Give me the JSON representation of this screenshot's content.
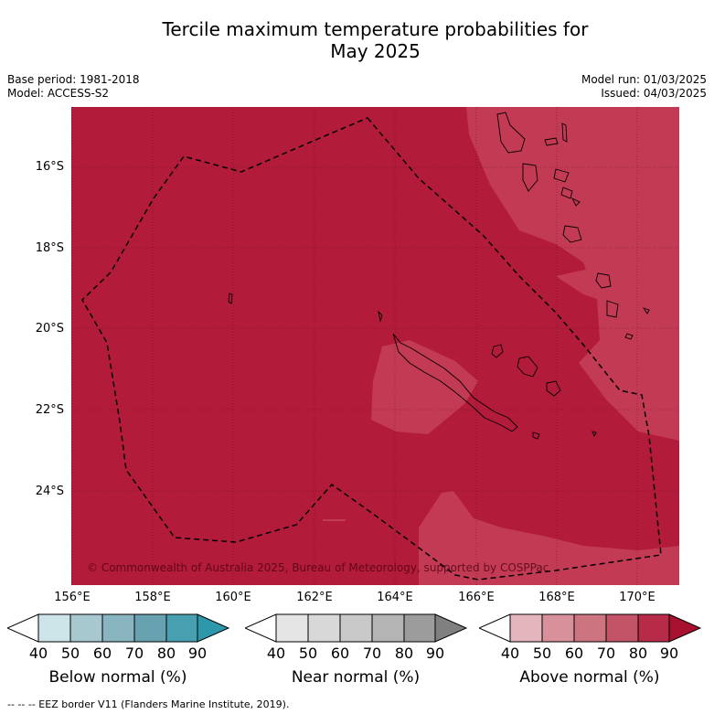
{
  "title_line1": "Tercile maximum temperature probabilities for",
  "title_line2": "May 2025",
  "base_period": "Base period: 1981-2018",
  "model": "Model: ACCESS-S2",
  "model_run": "Model run: 01/03/2025",
  "issued": "Issued: 04/03/2025",
  "copyright": "© Commonwealth of Australia 2025, Bureau of Meteorology, supported by COSPPac",
  "lat_labels": [
    "16°S",
    "18°S",
    "20°S",
    "22°S",
    "24°S"
  ],
  "lon_labels": [
    "156°E",
    "158°E",
    "160°E",
    "162°E",
    "164°E",
    "166°E",
    "168°E",
    "170°E"
  ],
  "colorbars": [
    {
      "title": "Below normal (%)",
      "ticks": [
        "40",
        "50",
        "60",
        "70",
        "80",
        "90"
      ],
      "colors": [
        "#ffffff",
        "#cde4e9",
        "#a7c8cf",
        "#88b5c0",
        "#68a2b1",
        "#479fb0",
        "#2e98ab"
      ]
    },
    {
      "title": "Near normal (%)",
      "ticks": [
        "40",
        "50",
        "60",
        "70",
        "80",
        "90"
      ],
      "colors": [
        "#ffffff",
        "#e5e5e5",
        "#d8d8d8",
        "#c9c9c9",
        "#b4b4b4",
        "#9c9c9c",
        "#808080"
      ]
    },
    {
      "title": "Above normal (%)",
      "ticks": [
        "40",
        "50",
        "60",
        "70",
        "80",
        "90"
      ],
      "colors": [
        "#ffffff",
        "#e3b5bd",
        "#d8919b",
        "#cc7480",
        "#c35468",
        "#b72a48",
        "#a8102f"
      ]
    }
  ],
  "colors": {
    "above_80_90": "#b31b3a",
    "above_70_80": "#c33a55"
  },
  "footnote": "-- -- -- EEZ border V11 (Flanders Marine Institute, 2019)."
}
